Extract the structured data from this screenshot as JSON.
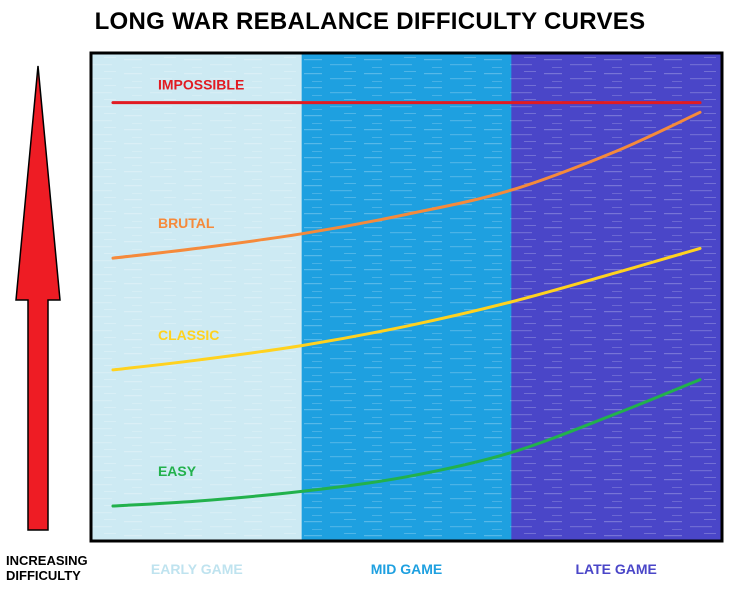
{
  "title": "LONG WAR REBALANCE DIFFICULTY CURVES",
  "y_indicator": {
    "line1": "INCREASING",
    "line2": "DIFFICULTY",
    "arrow_color": "#ee1c24"
  },
  "chart_data": {
    "type": "line",
    "title": "LONG WAR REBALANCE DIFFICULTY CURVES",
    "bands": [
      {
        "label": "EARLY GAME",
        "color": "#cdeaf3",
        "label_color": "#bfe3ef"
      },
      {
        "label": "MID GAME",
        "color": "#1ea0e0",
        "label_color": "#1ea0e0"
      },
      {
        "label": "LATE GAME",
        "color": "#4a46c8",
        "label_color": "#4a46c8"
      }
    ],
    "x_range": [
      0,
      3
    ],
    "y_range": [
      0,
      100
    ],
    "series": [
      {
        "name": "IMPOSSIBLE",
        "color": "#e11b22",
        "x": [
          0.1,
          0.5,
          1.0,
          1.5,
          2.0,
          2.5,
          2.9
        ],
        "y": [
          90,
          90,
          90,
          90,
          90,
          90,
          90
        ]
      },
      {
        "name": "BRUTAL",
        "color": "#f58a3b",
        "x": [
          0.1,
          0.5,
          1.0,
          1.5,
          2.0,
          2.5,
          2.9
        ],
        "y": [
          58,
          60,
          63,
          67,
          72,
          80,
          88
        ]
      },
      {
        "name": "CLASSIC",
        "color": "#ffd21f",
        "x": [
          0.1,
          0.5,
          1.0,
          1.5,
          2.0,
          2.5,
          2.9
        ],
        "y": [
          35,
          37,
          40,
          44,
          49,
          55,
          60
        ]
      },
      {
        "name": "EASY",
        "color": "#22b14c",
        "x": [
          0.1,
          0.5,
          1.0,
          1.5,
          2.0,
          2.5,
          2.9
        ],
        "y": [
          7,
          8,
          10,
          13,
          18,
          26,
          33
        ]
      }
    ],
    "grid": false,
    "legend": "inline labels"
  }
}
